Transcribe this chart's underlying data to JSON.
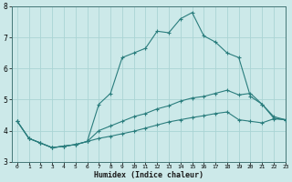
{
  "xlabel": "Humidex (Indice chaleur)",
  "ylabel": "",
  "background_color": "#cce9e9",
  "grid_color": "#aad4d4",
  "line_color": "#2a7d7d",
  "xlim": [
    -0.5,
    23
  ],
  "ylim": [
    3,
    8
  ],
  "yticks": [
    3,
    4,
    5,
    6,
    7,
    8
  ],
  "xticks": [
    0,
    1,
    2,
    3,
    4,
    5,
    6,
    7,
    8,
    9,
    10,
    11,
    12,
    13,
    14,
    15,
    16,
    17,
    18,
    19,
    20,
    21,
    22,
    23
  ],
  "series": [
    {
      "x": [
        0,
        1,
        2,
        3,
        4,
        5,
        6,
        7,
        8,
        9,
        10,
        11,
        12,
        13,
        14,
        15,
        16,
        17,
        18,
        19,
        20,
        21,
        22,
        23
      ],
      "y": [
        4.3,
        3.75,
        3.6,
        3.45,
        3.5,
        3.55,
        3.65,
        4.85,
        5.2,
        6.35,
        6.5,
        6.65,
        7.2,
        7.15,
        7.6,
        7.8,
        7.05,
        6.85,
        6.5,
        6.35,
        5.1,
        4.85,
        4.4,
        4.35
      ]
    },
    {
      "x": [
        0,
        1,
        2,
        3,
        4,
        5,
        6,
        7,
        8,
        9,
        10,
        11,
        12,
        13,
        14,
        15,
        16,
        17,
        18,
        19,
        20,
        21,
        22,
        23
      ],
      "y": [
        4.3,
        3.75,
        3.6,
        3.45,
        3.5,
        3.55,
        3.65,
        4.0,
        4.15,
        4.3,
        4.45,
        4.55,
        4.7,
        4.8,
        4.95,
        5.05,
        5.1,
        5.2,
        5.3,
        5.15,
        5.2,
        4.85,
        4.45,
        4.35
      ]
    },
    {
      "x": [
        0,
        1,
        2,
        3,
        4,
        5,
        6,
        7,
        8,
        9,
        10,
        11,
        12,
        13,
        14,
        15,
        16,
        17,
        18,
        19,
        20,
        21,
        22,
        23
      ],
      "y": [
        4.3,
        3.75,
        3.6,
        3.45,
        3.5,
        3.55,
        3.65,
        3.75,
        3.82,
        3.9,
        3.98,
        4.08,
        4.18,
        4.28,
        4.35,
        4.42,
        4.48,
        4.55,
        4.6,
        4.35,
        4.3,
        4.25,
        4.38,
        4.35
      ]
    }
  ]
}
